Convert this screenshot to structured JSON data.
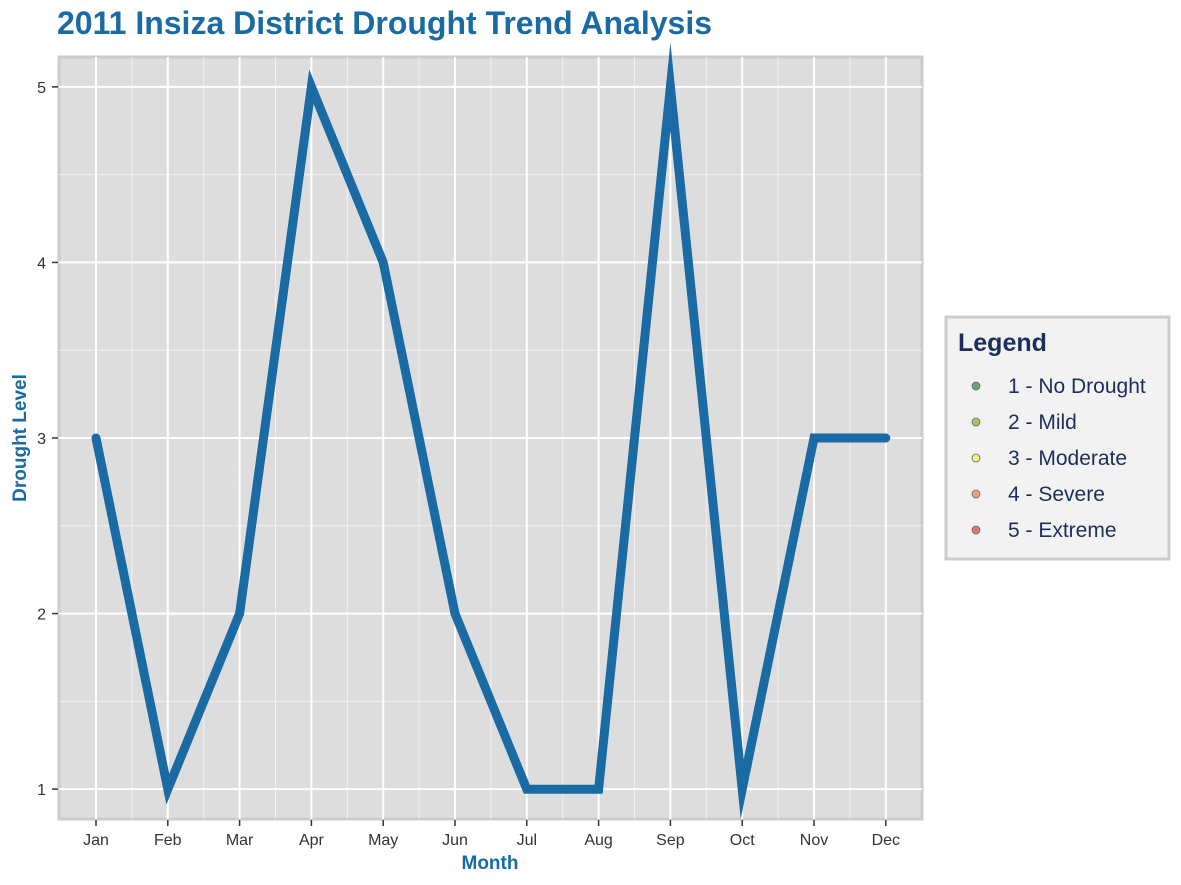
{
  "chart_data": {
    "type": "line",
    "title": "2011 Insiza District Drought Trend Analysis",
    "xlabel": "Month",
    "ylabel": "Drought Level",
    "categories": [
      "Jan",
      "Feb",
      "Mar",
      "Apr",
      "May",
      "Jun",
      "Jul",
      "Aug",
      "Sep",
      "Oct",
      "Nov",
      "Dec"
    ],
    "series": [
      {
        "values": [
          3,
          1,
          2,
          5,
          4,
          2,
          1,
          1,
          5,
          1,
          3,
          3
        ]
      }
    ],
    "ylim": [
      0.83,
      5.17
    ],
    "yticks": [
      1,
      2,
      3,
      4,
      5
    ],
    "grid": true,
    "legend_position": "right",
    "legend": {
      "title": "Legend",
      "items": [
        {
          "label": "1 - No Drought",
          "color": "#5a9a6a"
        },
        {
          "label": "2 - Mild",
          "color": "#9cc05a"
        },
        {
          "label": "3 - Moderate",
          "color": "#f2f07a"
        },
        {
          "label": "4 - Severe",
          "color": "#e59a70"
        },
        {
          "label": "5 - Extreme",
          "color": "#d86a6a"
        }
      ]
    },
    "colors": {
      "line": "#1a6aa3",
      "title": "#1a6aa3",
      "axis_title": "#1a6aa3",
      "panel_bg": "#dddddd",
      "panel_border": "#cccccc",
      "grid": "#ffffff",
      "legend_bg": "#f2f2f2",
      "legend_text": "#1c2f5c"
    }
  }
}
